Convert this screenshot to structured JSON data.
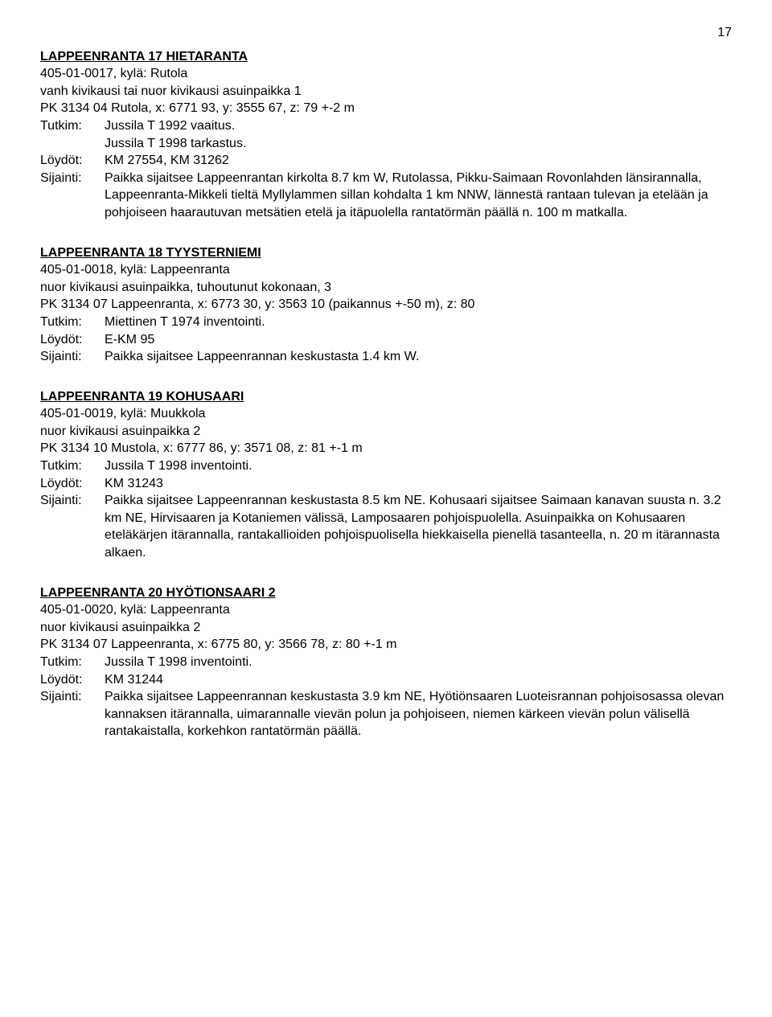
{
  "page_number": "17",
  "entries": [
    {
      "title": "LAPPEENRANTA 17 HIETARANTA",
      "id_line": "405-01-0017, kylä: Rutola",
      "type_line": "vanh kivikausi tai nuor kivikausi asuinpaikka 1",
      "pk_line": "PK 3134 04 Rutola, x: 6771 93, y: 3555 67, z: 79 +-2 m",
      "tutkim": "Jussila T 1992 vaaitus.",
      "tutkim2": "Jussila T 1998 tarkastus.",
      "loydot": "KM 27554, KM 31262",
      "sijainti": "Paikka sijaitsee Lappeenrantan kirkolta 8.7 km W, Rutolassa, Pikku-Saimaan Rovonlahden länsirannalla, Lappeenranta-Mikkeli tieltä Myllylammen sillan kohdalta 1 km NNW, lännestä rantaan tulevan ja etelään ja pohjoiseen  haarautuvan metsätien etelä ja itäpuolella rantatörmän päällä n. 100 m matkalla."
    },
    {
      "title": "LAPPEENRANTA 18 TYYSTERNIEMI",
      "id_line": "405-01-0018, kylä: Lappeenranta",
      "type_line": "nuor kivikausi asuinpaikka, tuhoutunut kokonaan,  3",
      "pk_line": "PK 3134 07 Lappeenranta, x: 6773 30, y: 3563 10 (paikannus +-50 m), z: 80",
      "tutkim": "Miettinen T 1974 inventointi.",
      "loydot": "E-KM 95",
      "sijainti": "Paikka sijaitsee Lappeenrannan keskustasta 1.4 km W."
    },
    {
      "title": "LAPPEENRANTA 19 KOHUSAARI",
      "id_line": "405-01-0019, kylä: Muukkola",
      "type_line": "nuor kivikausi asuinpaikka 2",
      "pk_line": "PK 3134 10 Mustola, x: 6777 86, y: 3571 08, z: 81 +-1 m",
      "tutkim": "Jussila T 1998 inventointi.",
      "loydot": "KM 31243",
      "sijainti": "Paikka sijaitsee Lappeenrannan keskustasta 8.5 km NE. Kohusaari sijaitsee Saimaan kanavan suusta n. 3.2  km NE, Hirvisaaren ja Kotaniemen välissä, Lamposaaren pohjoispuolella. Asuinpaikka on Kohusaaren eteläkärjen  itärannalla, rantakallioiden pohjoispuolisella hiekkaisella pienellä tasanteella, n. 20 m itärannasta alkaen."
    },
    {
      "title": "LAPPEENRANTA 20 HYÖTIONSAARI 2",
      "id_line": "405-01-0020, kylä: Lappeenranta",
      "type_line": "nuor kivikausi asuinpaikka 2",
      "pk_line": "PK 3134 07 Lappeenranta, x: 6775 80, y: 3566 78, z: 80 +-1 m",
      "tutkim": "Jussila T 1998 inventointi.",
      "loydot": "KM 31244",
      "sijainti": "Paikka sijaitsee Lappeenrannan keskustasta 3.9 km NE, Hyötiönsaaren Luoteisrannan pohjoisosassa olevan kannaksen itärannalla, uimarannalle vievän  polun ja pohjoiseen, niemen kärkeen vievän polun välisellä rantakaistalla, korkehkon rantatörmän päällä."
    }
  ],
  "labels": {
    "tutkim": "Tutkim:",
    "loydot": "Löydöt:",
    "sijainti": "Sijainti:"
  }
}
